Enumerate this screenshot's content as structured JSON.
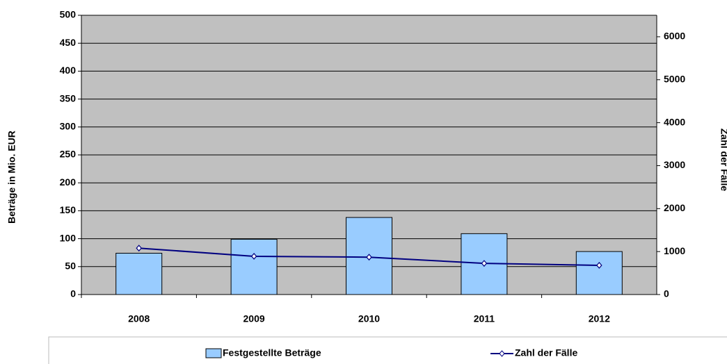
{
  "chart_data": {
    "type": "bar_line",
    "categories": [
      "2008",
      "2009",
      "2010",
      "2011",
      "2012"
    ],
    "series": [
      {
        "name": "Festgestellte Beträge",
        "color": "#99ccff",
        "values": [
          74,
          99,
          138,
          109,
          77
        ]
      },
      {
        "name": "Zahl der Fälle",
        "color": "#000080",
        "axis": "y2",
        "values": [
          1080,
          890,
          870,
          725,
          680
        ]
      }
    ],
    "y_label": "Beträge in Mio. EUR",
    "y2_label": "Zahl der Fälle",
    "ylim": [
      0,
      500
    ],
    "yticks": [
      0,
      50,
      100,
      150,
      200,
      250,
      300,
      350,
      400,
      450,
      500
    ],
    "y2lim": [
      0,
      6500
    ],
    "y2ticks": [
      0,
      1000,
      2000,
      3000,
      4000,
      5000,
      6000
    ],
    "grid": true,
    "plot_background": "#c0c0c0",
    "legend": "bottom"
  }
}
